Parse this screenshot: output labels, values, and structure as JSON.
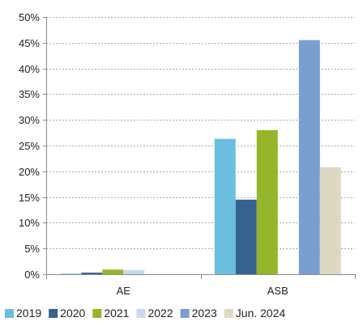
{
  "chart_data": {
    "type": "bar",
    "categories": [
      "AE",
      "ASB"
    ],
    "series": [
      {
        "name": "2019",
        "values": [
          0.1,
          26.3
        ],
        "color": "#6ABFE0"
      },
      {
        "name": "2020",
        "values": [
          0.3,
          14.5
        ],
        "color": "#35628F"
      },
      {
        "name": "2021",
        "values": [
          0.9,
          28.0
        ],
        "color": "#95B52A"
      },
      {
        "name": "2022",
        "values": [
          0.8,
          0.0
        ],
        "color": "#C9D8EA"
      },
      {
        "name": "2023",
        "values": [
          0.0,
          45.5
        ],
        "color": "#7B9ED0"
      },
      {
        "name": "Jun. 2024",
        "values": [
          0.0,
          20.8
        ],
        "color": "#DDD8C2"
      }
    ],
    "yticks": [
      "0%",
      "5%",
      "10%",
      "15%",
      "20%",
      "25%",
      "30%",
      "35%",
      "40%",
      "45%",
      "50%"
    ],
    "ylim": [
      0,
      50
    ],
    "grid": true,
    "legend_position": "bottom"
  }
}
